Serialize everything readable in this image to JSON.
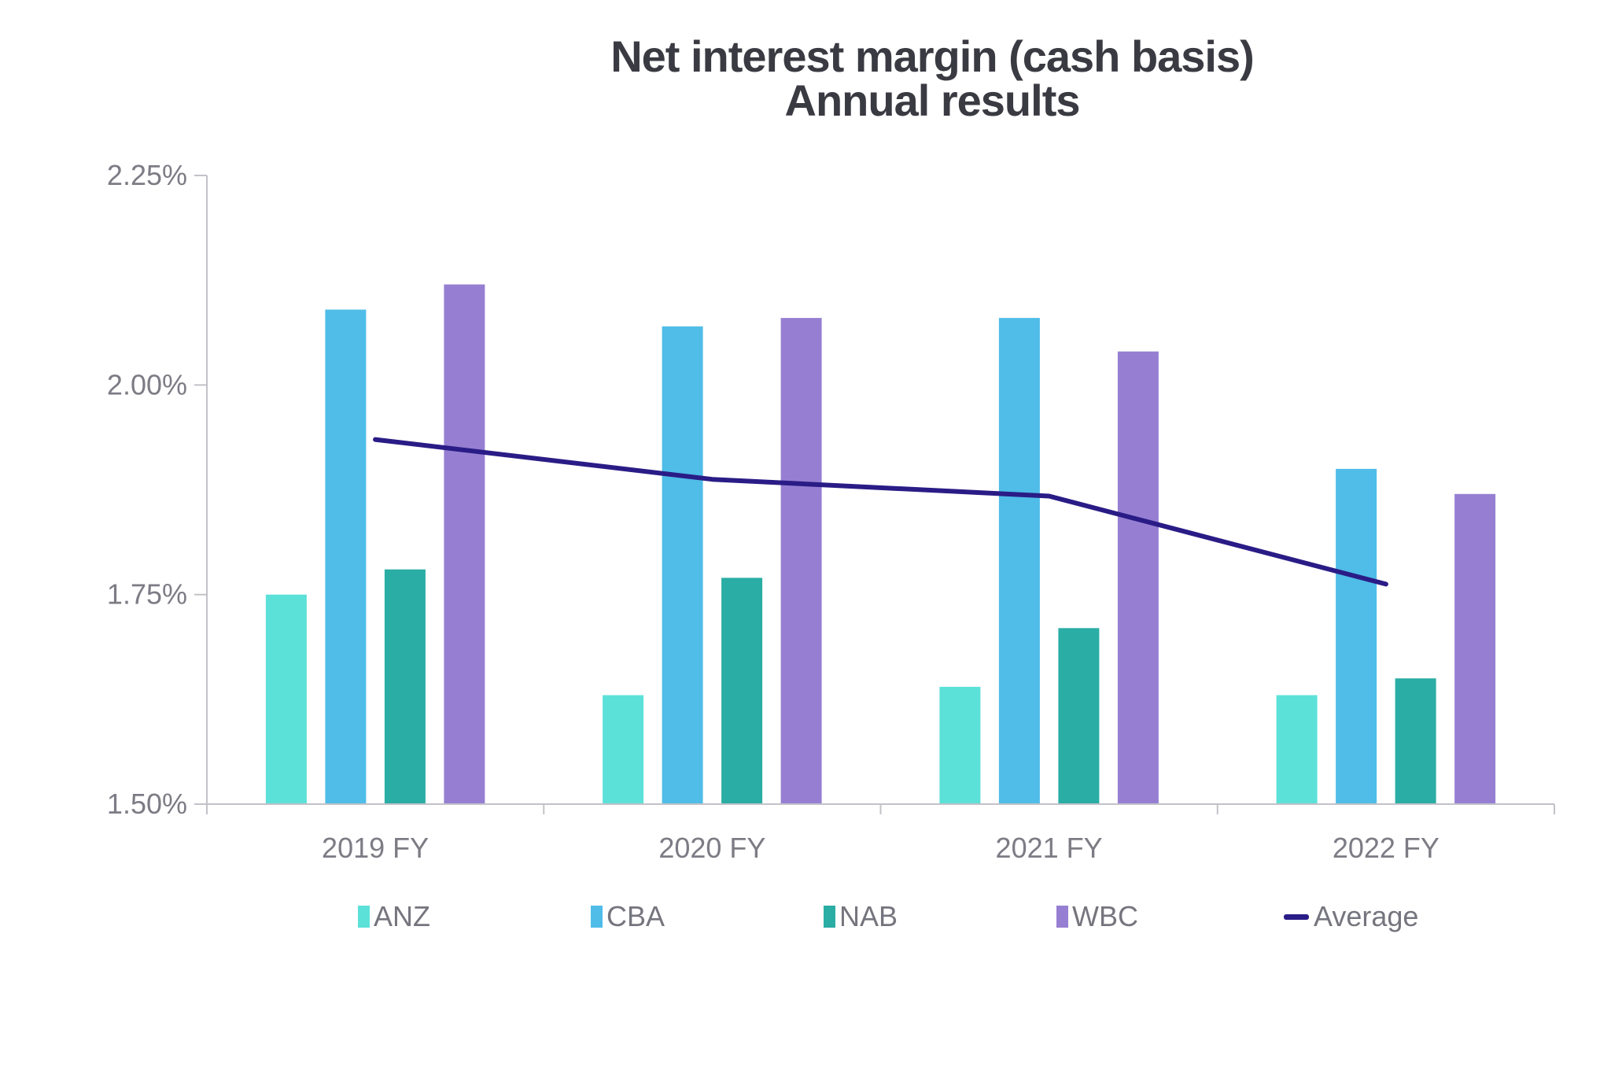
{
  "chart_data": {
    "type": "bar",
    "title_line1": "Net interest margin (cash basis)",
    "title_line2": "Annual results",
    "categories": [
      "2019 FY",
      "2020 FY",
      "2021 FY",
      "2022 FY"
    ],
    "series": [
      {
        "name": "ANZ",
        "type": "bar",
        "color": "#5CE1D9",
        "values": [
          1.75,
          1.63,
          1.64,
          1.63
        ]
      },
      {
        "name": "CBA",
        "type": "bar",
        "color": "#4FBDE8",
        "values": [
          2.09,
          2.07,
          2.08,
          1.9
        ]
      },
      {
        "name": "NAB",
        "type": "bar",
        "color": "#2AADA4",
        "values": [
          1.78,
          1.77,
          1.71,
          1.65
        ]
      },
      {
        "name": "WBC",
        "type": "bar",
        "color": "#967FD2",
        "values": [
          2.12,
          2.08,
          2.04,
          1.87
        ]
      },
      {
        "name": "Average",
        "type": "line",
        "color": "#2A1C86",
        "values": [
          1.935,
          1.8875,
          1.8675,
          1.7625
        ]
      }
    ],
    "y_axis": {
      "min": 1.5,
      "max": 2.25,
      "tick_labels": [
        "2.25%",
        "2.00%",
        "1.75%",
        "1.50%"
      ],
      "tick_values": [
        2.25,
        2.0,
        1.75,
        1.5
      ],
      "format": "percent"
    },
    "grid": "off",
    "legend_position": "bottom"
  }
}
